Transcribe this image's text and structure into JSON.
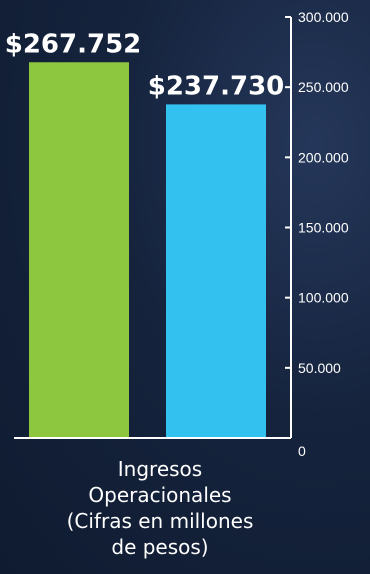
{
  "colors": {
    "background": "#15233d",
    "axis": "#ffffff",
    "bar_green": "#8dc63f",
    "bar_blue": "#33c1f0",
    "text": "#ffffff"
  },
  "chart_data": {
    "type": "bar",
    "categories": [
      "Ingresos Operacionales (Cifras en millones de pesos)"
    ],
    "category_label_lines": [
      "Ingresos",
      "Operacionales",
      "(Cifras en millones",
      "de pesos)"
    ],
    "series": [
      {
        "values": [
          267752
        ],
        "data_label": "$267.752",
        "color": "#8dc63f"
      },
      {
        "values": [
          237730
        ],
        "data_label": "$237.730",
        "color": "#33c1f0"
      }
    ],
    "y_ticks": [
      {
        "value": 0,
        "label": "0"
      },
      {
        "value": 50000,
        "label": "50.000"
      },
      {
        "value": 100000,
        "label": "100.000"
      },
      {
        "value": 150000,
        "label": "150.000"
      },
      {
        "value": 200000,
        "label": "200.000"
      },
      {
        "value": 250000,
        "label": "250.000"
      },
      {
        "value": 300000,
        "label": "300.000"
      }
    ],
    "ylim": [
      0,
      300000
    ],
    "y_axis_position": "right",
    "grid": false,
    "legend": "none",
    "title": "",
    "xlabel": "",
    "ylabel": ""
  }
}
